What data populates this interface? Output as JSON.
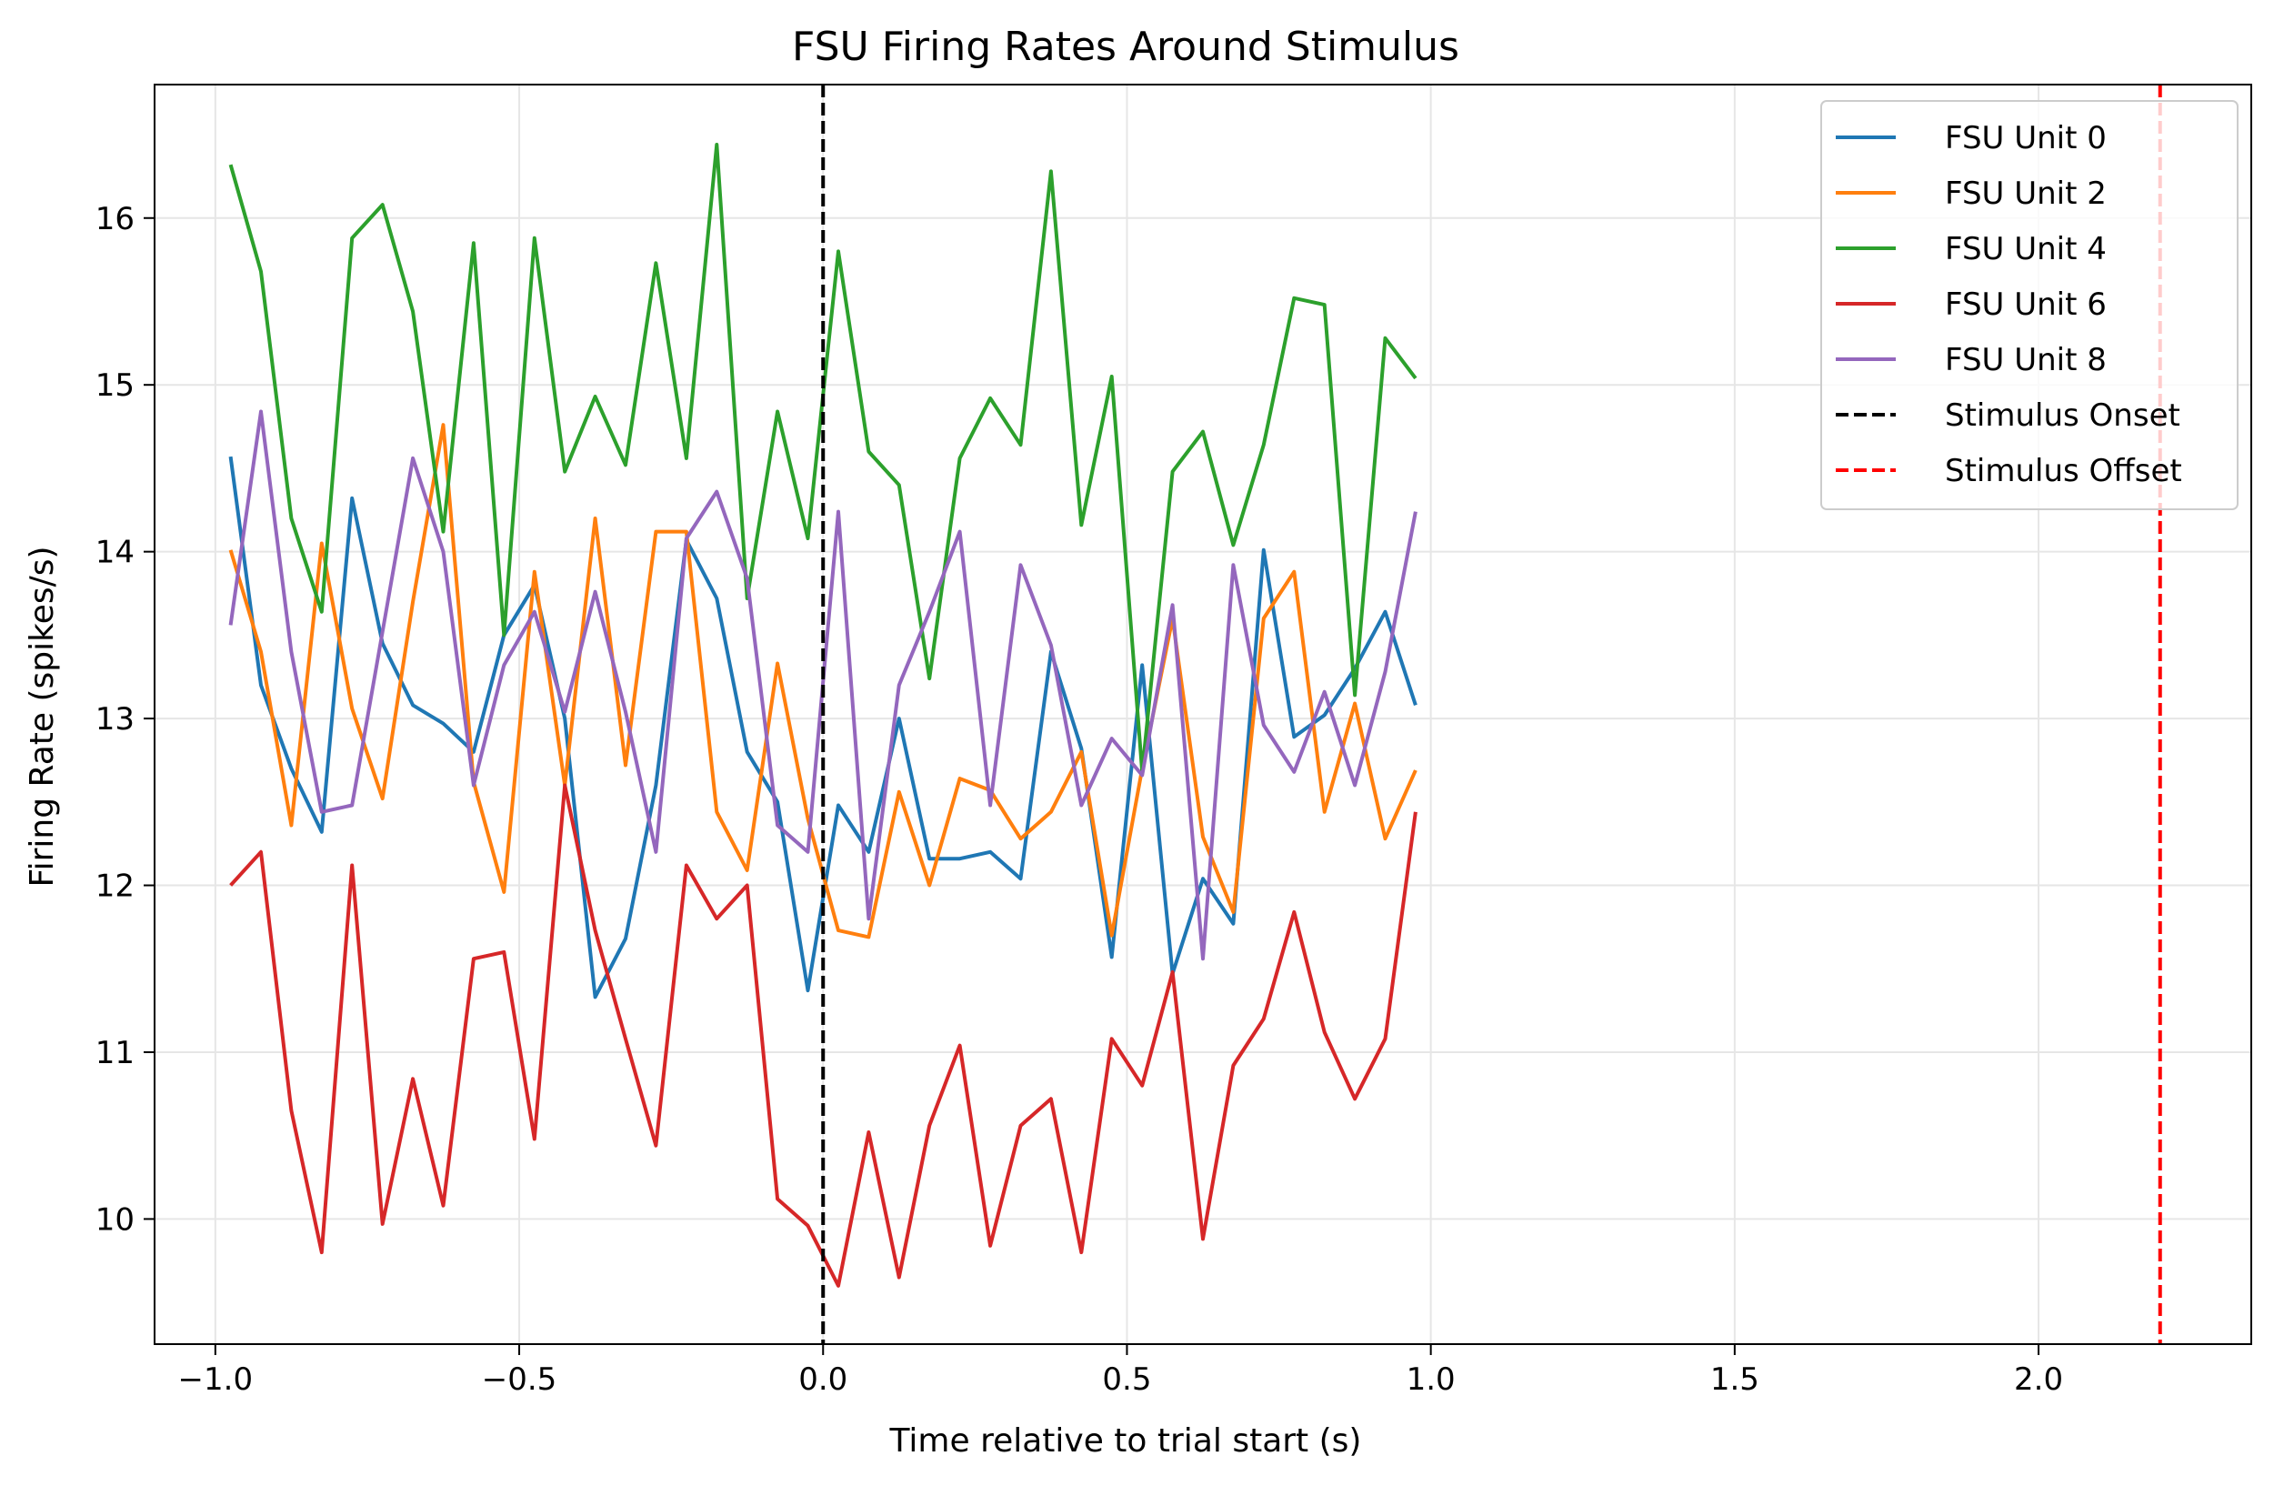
{
  "chart_data": {
    "type": "line",
    "title": "FSU Firing Rates Around Stimulus",
    "xlabel": "Time relative to trial start (s)",
    "ylabel": "Firing Rate (spikes/s)",
    "xlim": [
      -1.1,
      2.35
    ],
    "ylim": [
      9.25,
      16.8
    ],
    "xticks": [
      -1.0,
      -0.5,
      0.0,
      0.5,
      1.0,
      1.5,
      2.0
    ],
    "xtick_labels": [
      "−1.0",
      "−0.5",
      "0.0",
      "0.5",
      "1.0",
      "1.5",
      "2.0"
    ],
    "yticks": [
      10,
      11,
      12,
      13,
      14,
      15,
      16
    ],
    "ytick_labels": [
      "10",
      "11",
      "12",
      "13",
      "14",
      "15",
      "16"
    ],
    "grid": true,
    "legend_position": "top-right",
    "x": [
      -0.975,
      -0.925,
      -0.875,
      -0.825,
      -0.775,
      -0.725,
      -0.675,
      -0.625,
      -0.575,
      -0.525,
      -0.475,
      -0.425,
      -0.375,
      -0.325,
      -0.275,
      -0.225,
      -0.175,
      -0.125,
      -0.075,
      -0.025,
      0.025,
      0.075,
      0.125,
      0.175,
      0.225,
      0.275,
      0.325,
      0.375,
      0.425,
      0.475,
      0.525,
      0.575,
      0.625,
      0.675,
      0.725,
      0.775,
      0.825,
      0.875,
      0.925,
      0.975
    ],
    "series": [
      {
        "name": "FSU Unit 0",
        "color": "#1f77b4",
        "values": [
          14.57,
          13.2,
          12.7,
          12.32,
          14.32,
          13.45,
          13.08,
          12.97,
          12.8,
          13.5,
          13.8,
          13.0,
          11.33,
          11.68,
          12.6,
          14.07,
          13.72,
          12.8,
          12.5,
          11.37,
          12.48,
          12.2,
          13.0,
          12.16,
          12.16,
          12.2,
          12.04,
          13.4,
          12.82,
          11.57,
          13.32,
          11.47,
          12.04,
          11.77,
          14.01,
          12.89,
          13.02,
          13.3,
          13.64,
          13.08
        ]
      },
      {
        "name": "FSU Unit 2",
        "color": "#ff7f0e",
        "values": [
          14.01,
          13.4,
          12.36,
          14.05,
          13.06,
          12.52,
          13.7,
          14.76,
          12.62,
          11.96,
          13.88,
          12.6,
          14.2,
          12.72,
          14.12,
          14.12,
          12.44,
          12.09,
          13.33,
          12.4,
          11.73,
          11.69,
          12.56,
          12.0,
          12.64,
          12.57,
          12.28,
          12.44,
          12.8,
          11.7,
          12.7,
          13.6,
          12.29,
          11.84,
          13.6,
          13.88,
          12.44,
          13.09,
          12.28,
          12.69
        ]
      },
      {
        "name": "FSU Unit 4",
        "color": "#2ca02c",
        "values": [
          16.32,
          15.68,
          14.2,
          13.64,
          15.88,
          16.08,
          15.44,
          14.12,
          15.85,
          13.5,
          15.88,
          14.48,
          14.93,
          14.52,
          15.73,
          14.56,
          16.44,
          13.72,
          14.84,
          14.08,
          15.8,
          14.6,
          14.4,
          13.24,
          14.56,
          14.92,
          14.64,
          16.28,
          14.16,
          15.05,
          12.68,
          14.48,
          14.72,
          14.04,
          14.64,
          15.52,
          15.48,
          13.14,
          15.28,
          15.04
        ]
      },
      {
        "name": "FSU Unit 6",
        "color": "#d62728",
        "values": [
          12.0,
          12.2,
          10.65,
          9.8,
          12.12,
          9.97,
          10.84,
          10.08,
          11.56,
          11.6,
          10.48,
          12.6,
          11.73,
          11.08,
          10.44,
          12.12,
          11.8,
          12.0,
          10.12,
          9.96,
          9.6,
          10.52,
          9.65,
          10.56,
          11.04,
          9.84,
          10.56,
          10.72,
          9.8,
          11.08,
          10.8,
          11.48,
          9.88,
          10.92,
          11.2,
          11.84,
          11.12,
          10.72,
          11.08,
          12.44
        ]
      },
      {
        "name": "FSU Unit 8",
        "color": "#9467bd",
        "values": [
          13.56,
          14.84,
          13.4,
          12.44,
          12.48,
          13.52,
          14.56,
          14.0,
          12.6,
          13.32,
          13.64,
          13.04,
          13.76,
          13.04,
          12.2,
          14.08,
          14.36,
          13.84,
          12.36,
          12.2,
          14.24,
          11.8,
          13.2,
          13.64,
          14.12,
          12.48,
          13.92,
          13.44,
          12.48,
          12.88,
          12.66,
          13.68,
          11.56,
          13.92,
          12.96,
          12.68,
          13.16,
          12.6,
          13.28,
          14.24
        ]
      }
    ],
    "vlines": [
      {
        "name": "Stimulus Onset",
        "x": 0.0,
        "color": "#000000",
        "style": "dashed"
      },
      {
        "name": "Stimulus Offset",
        "x": 2.2,
        "color": "#ff0000",
        "style": "dashed"
      }
    ]
  }
}
